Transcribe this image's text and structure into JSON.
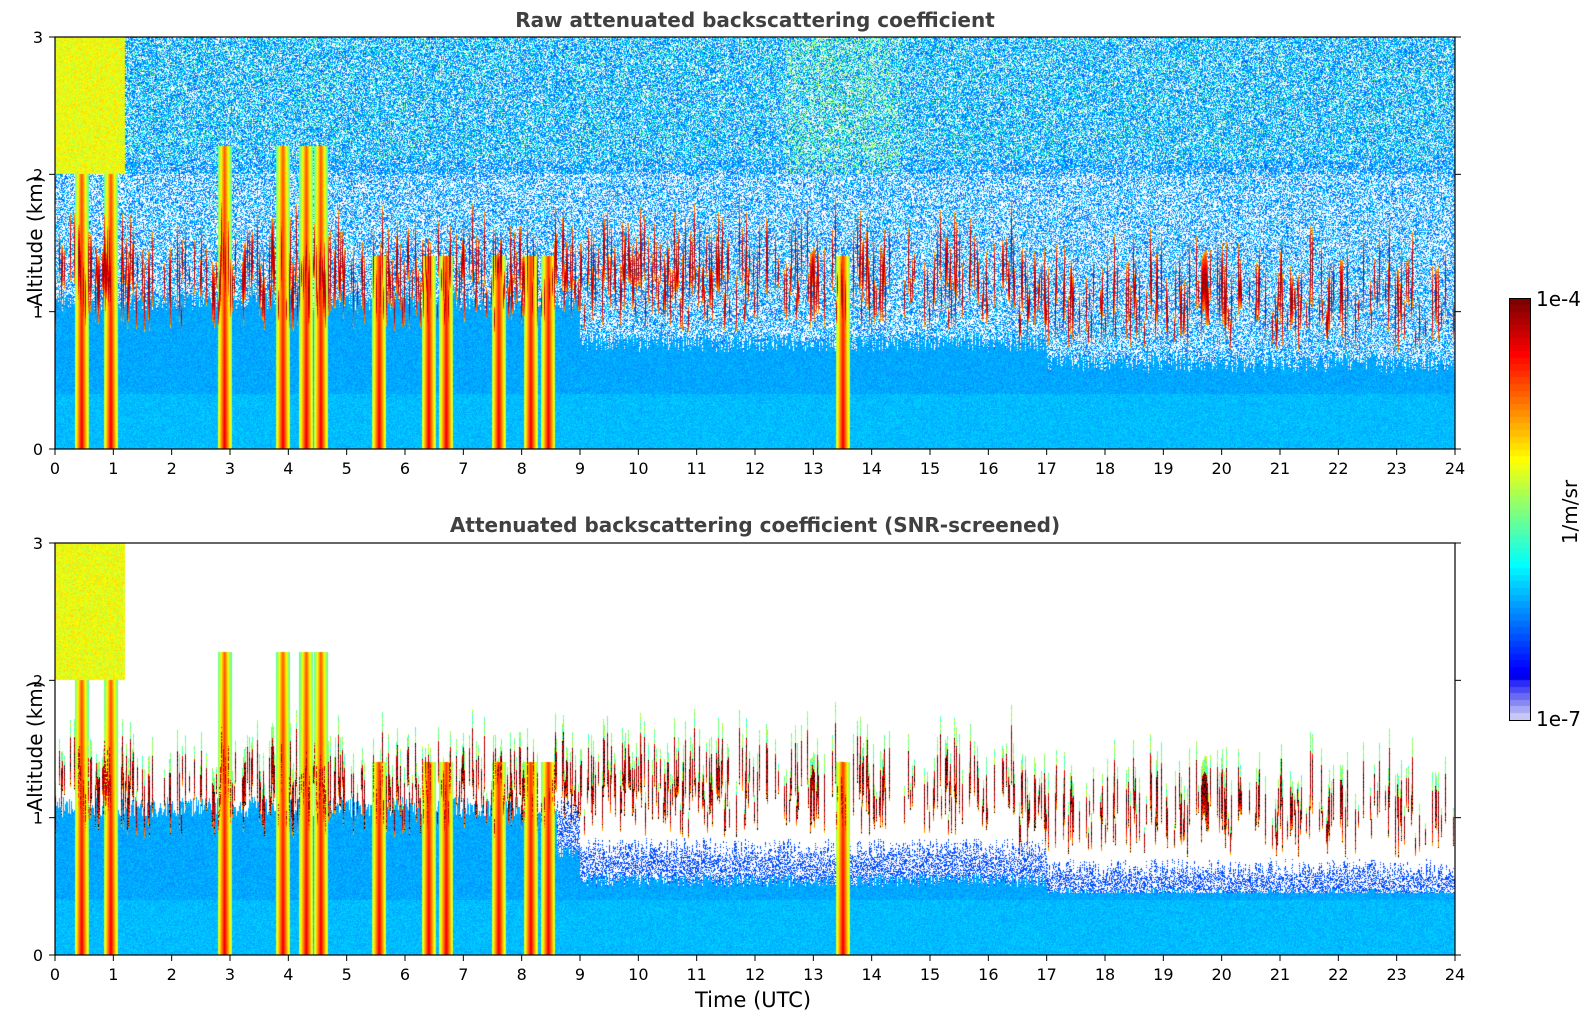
{
  "chart_data": [
    {
      "type": "heatmap",
      "title": "Raw attenuated backscattering coefficient",
      "ylabel": "Altitude (km)",
      "xlabel": "",
      "xlim": [
        0,
        24
      ],
      "ylim": [
        0,
        3
      ],
      "xticks": [
        "0",
        "1",
        "2",
        "3",
        "4",
        "5",
        "6",
        "7",
        "8",
        "9",
        "10",
        "11",
        "12",
        "13",
        "14",
        "15",
        "16",
        "17",
        "18",
        "19",
        "20",
        "21",
        "22",
        "23",
        "24"
      ],
      "yticks": [
        "0",
        "1",
        "2",
        "3"
      ],
      "screened": false
    },
    {
      "type": "heatmap",
      "title": "Attenuated backscattering coefficient (SNR-screened)",
      "ylabel": "Altitude (km)",
      "xlabel": "Time (UTC)",
      "xlim": [
        0,
        24
      ],
      "ylim": [
        0,
        3
      ],
      "xticks": [
        "0",
        "1",
        "2",
        "3",
        "4",
        "5",
        "6",
        "7",
        "8",
        "9",
        "10",
        "11",
        "12",
        "13",
        "14",
        "15",
        "16",
        "17",
        "18",
        "19",
        "20",
        "21",
        "22",
        "23",
        "24"
      ],
      "yticks": [
        "0",
        "1",
        "2",
        "3"
      ],
      "screened": true
    }
  ],
  "colorbar": {
    "max_label": "1e-4",
    "min_label": "1e-7",
    "unit": "1/m/sr",
    "scale": "log",
    "colormap": "jet"
  },
  "features": {
    "strong_plumes_utc": [
      0.45,
      0.95,
      2.9,
      3.9,
      4.3,
      4.55,
      5.55,
      6.4,
      6.7,
      7.6,
      8.15,
      8.45,
      13.5
    ],
    "cloud_layer_km": [
      0.8,
      1.6
    ]
  }
}
